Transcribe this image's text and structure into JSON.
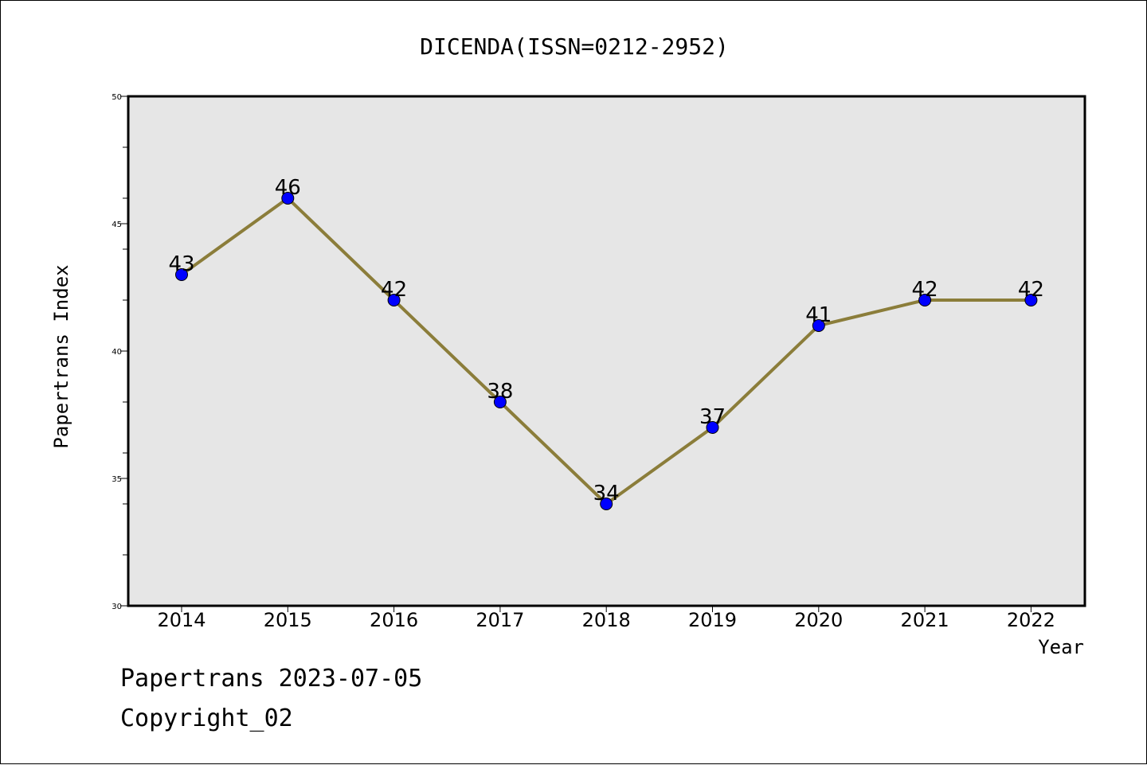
{
  "chart_data": {
    "type": "line",
    "title": "DICENDA(ISSN=0212-2952)",
    "xlabel": "Year",
    "ylabel": "Papertrans Index",
    "categories": [
      "2014",
      "2015",
      "2016",
      "2017",
      "2018",
      "2019",
      "2020",
      "2021",
      "2022"
    ],
    "series": [
      {
        "values": [
          43,
          46,
          42,
          38,
          34,
          37,
          41,
          42,
          42
        ]
      }
    ],
    "data_labels": [
      "43",
      "46",
      "42",
      "38",
      "34",
      "37",
      "41",
      "42",
      "42"
    ],
    "ylim": [
      30,
      50
    ],
    "yticks": [
      "30",
      "35",
      "40",
      "45",
      "50"
    ],
    "grid": false,
    "colors": {
      "line": "#8B7D3A",
      "marker": "#0000FF",
      "plot_bg": "#E6E6E6"
    }
  },
  "footer": {
    "source": "Papertrans 2023-07-05",
    "copyright": "Copyright_02"
  }
}
